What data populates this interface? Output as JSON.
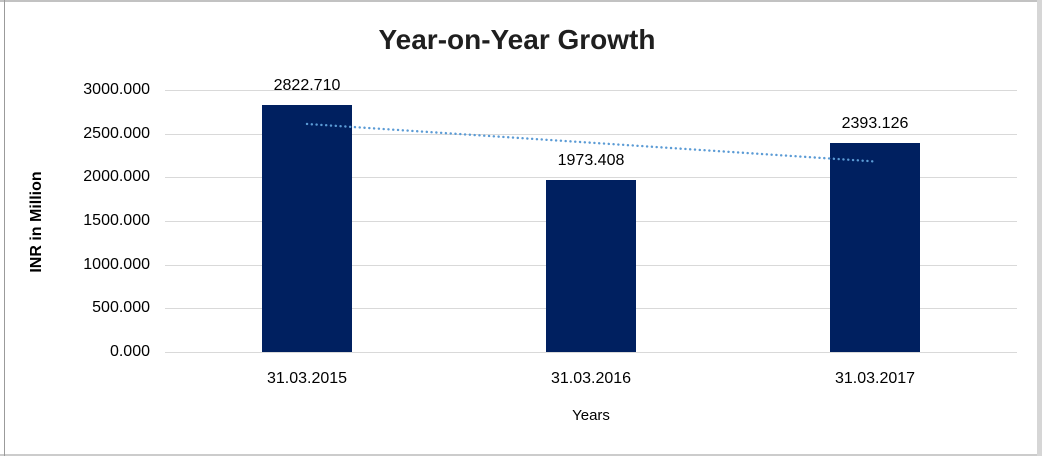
{
  "chart_data": {
    "type": "bar",
    "title": "Year-on-Year Growth",
    "xlabel": "Years",
    "ylabel": "INR in Million",
    "categories": [
      "31.03.2015",
      "31.03.2016",
      "31.03.2017"
    ],
    "values": [
      2822.71,
      1973.408,
      2393.126
    ],
    "data_labels": [
      "2822.710",
      "1973.408",
      "2393.126"
    ],
    "ylim": [
      0,
      3000
    ],
    "yticks": [
      {
        "value": 0,
        "label": "0.000"
      },
      {
        "value": 500,
        "label": "500.000"
      },
      {
        "value": 1000,
        "label": "1000.000"
      },
      {
        "value": 1500,
        "label": "1500.000"
      },
      {
        "value": 2000,
        "label": "2000.000"
      },
      {
        "value": 2500,
        "label": "2500.000"
      },
      {
        "value": 3000,
        "label": "3000.000"
      }
    ],
    "grid": "horizontal",
    "legend": "none",
    "bar_color": "#002060",
    "gridline_color": "#d9d9d9",
    "trendline": {
      "type": "linear",
      "style": "dotted",
      "color": "#5b9bd5",
      "start_value": 2611.2,
      "end_value": 2181.6
    }
  }
}
